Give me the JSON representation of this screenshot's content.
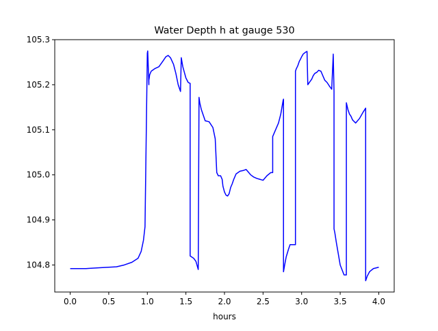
{
  "chart_data": {
    "type": "line",
    "title": "Water Depth h at gauge 530",
    "xlabel": "hours",
    "ylabel": "",
    "xlim": [
      -0.2,
      4.2
    ],
    "ylim": [
      104.74,
      105.3
    ],
    "grid": false,
    "line_color": "#0000ff",
    "xticks": [
      0.0,
      0.5,
      1.0,
      1.5,
      2.0,
      2.5,
      3.0,
      3.5,
      4.0
    ],
    "xtick_labels": [
      "0.0",
      "0.5",
      "1.0",
      "1.5",
      "2.0",
      "2.5",
      "3.0",
      "3.5",
      "4.0"
    ],
    "yticks": [
      104.8,
      104.9,
      105.0,
      105.1,
      105.2,
      105.3
    ],
    "ytick_labels": [
      "104.8",
      "104.9",
      "105.0",
      "105.1",
      "105.2",
      "105.3"
    ],
    "series": [
      {
        "x": [
          0.0,
          0.2,
          0.4,
          0.6,
          0.7,
          0.8,
          0.88,
          0.92,
          0.95,
          0.97,
          1.0,
          1.005,
          1.02,
          1.02,
          1.025,
          1.03,
          1.05,
          1.1,
          1.15,
          1.2,
          1.24,
          1.27,
          1.3,
          1.34,
          1.37,
          1.4,
          1.43,
          1.44,
          1.46,
          1.5,
          1.53,
          1.555,
          1.555,
          1.6,
          1.63,
          1.66,
          1.67,
          1.68,
          1.7,
          1.72,
          1.75,
          1.8,
          1.85,
          1.88,
          1.9,
          1.9,
          1.92,
          1.95,
          1.97,
          1.98,
          2.0,
          2.02,
          2.04,
          2.06,
          2.08,
          2.1,
          2.12,
          2.15,
          2.2,
          2.25,
          2.28,
          2.3,
          2.34,
          2.38,
          2.42,
          2.46,
          2.5,
          2.52,
          2.55,
          2.6,
          2.625,
          2.625,
          2.65,
          2.7,
          2.73,
          2.76,
          2.765,
          2.765,
          2.78,
          2.8,
          2.83,
          2.85,
          2.92,
          2.92,
          2.93,
          2.95,
          2.97,
          2.98,
          3.0,
          3.02,
          3.05,
          3.07,
          3.08,
          3.08,
          3.1,
          3.13,
          3.15,
          3.17,
          3.2,
          3.22,
          3.25,
          3.28,
          3.3,
          3.33,
          3.36,
          3.39,
          3.41,
          3.41,
          3.42,
          3.42,
          3.43,
          3.45,
          3.5,
          3.55,
          3.58,
          3.58,
          3.6,
          3.62,
          3.64,
          3.66,
          3.7,
          3.75,
          3.8,
          3.83,
          3.83,
          3.85,
          3.88,
          3.93,
          4.0
        ],
        "y": [
          104.792,
          104.792,
          104.794,
          104.796,
          104.8,
          104.806,
          104.815,
          104.83,
          104.855,
          104.885,
          105.27,
          105.275,
          105.2,
          105.21,
          105.215,
          105.222,
          105.23,
          105.236,
          105.24,
          105.252,
          105.262,
          105.265,
          105.26,
          105.245,
          105.225,
          105.2,
          105.185,
          105.26,
          105.24,
          105.215,
          105.205,
          105.203,
          104.82,
          104.815,
          104.808,
          104.79,
          105.172,
          105.16,
          105.145,
          105.135,
          105.12,
          105.118,
          105.105,
          105.08,
          105.005,
          105.005,
          104.998,
          104.998,
          104.99,
          104.975,
          104.962,
          104.955,
          104.953,
          104.958,
          104.972,
          104.98,
          104.99,
          105.002,
          105.008,
          105.01,
          105.012,
          105.008,
          105.0,
          104.995,
          104.992,
          104.99,
          104.988,
          104.992,
          104.998,
          105.005,
          105.005,
          105.085,
          105.095,
          105.115,
          105.135,
          105.165,
          105.168,
          104.785,
          104.8,
          104.818,
          104.835,
          104.845,
          104.845,
          105.23,
          105.235,
          105.242,
          105.252,
          105.255,
          105.262,
          105.268,
          105.272,
          105.274,
          105.2,
          105.2,
          105.205,
          105.212,
          105.22,
          105.225,
          105.228,
          105.232,
          105.23,
          105.218,
          105.21,
          105.205,
          105.197,
          105.19,
          105.268,
          105.265,
          105.185,
          104.88,
          104.872,
          104.85,
          104.8,
          104.778,
          104.778,
          105.16,
          105.145,
          105.135,
          105.13,
          105.122,
          105.115,
          105.125,
          105.14,
          105.148,
          104.765,
          104.775,
          104.785,
          104.792,
          104.795
        ]
      }
    ]
  }
}
